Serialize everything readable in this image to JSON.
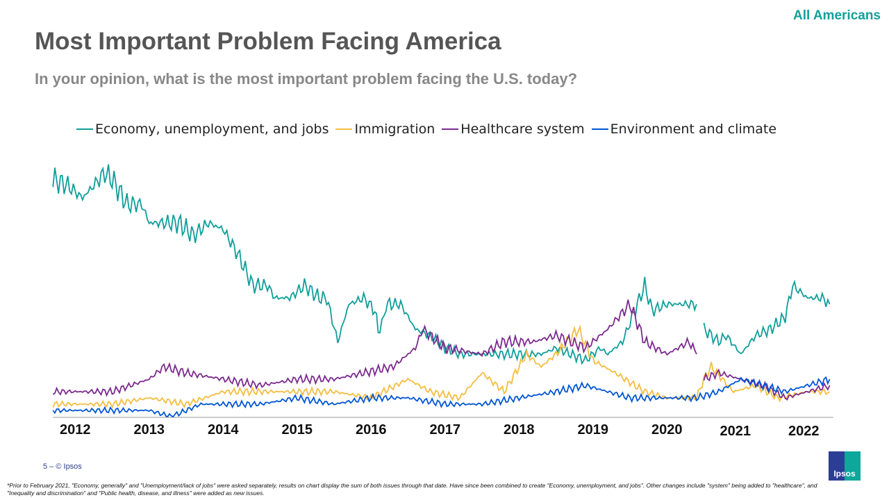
{
  "header": {
    "segment": "All Americans",
    "title": "Most Important Problem Facing America",
    "subtitle": "In your opinion, what is the most important problem facing the U.S. today?"
  },
  "footer": {
    "page": "5 –  © Ipsos",
    "note": "*Prior to February 2021, \"Economy,  generally\" and \"Unemployment/lack  of jobs\" were asked separately, results on chart display the sum of both issues through that date. Have since been combined  to create \"Economy,  unemployment,   and jobs\". Other changes include \"system\" being added to \"healthcare\", and  \"Inequality and discrimination\" and \"Public health, disease, and illness\" were added as new issues.",
    "logo": "Ipsos"
  },
  "chart_data": {
    "type": "line",
    "title": "",
    "xlabel": "",
    "ylabel": "",
    "legend": "top",
    "grid": false,
    "xlim": [
      2012,
      2022.8
    ],
    "ylim": [
      0,
      40
    ],
    "xticks": [
      "2012",
      "2013",
      "2014",
      "2015",
      "2016",
      "2017",
      "2018",
      "2019",
      "2020",
      "2021",
      "2022"
    ],
    "series": [
      {
        "name": "Economy, unemployment, and jobs",
        "color": "#0e9e9a",
        "points": [
          [
            2012.2,
            38
          ],
          [
            2012.4,
            37
          ],
          [
            2012.6,
            35
          ],
          [
            2012.9,
            39
          ],
          [
            2013.0,
            38
          ],
          [
            2013.2,
            34
          ],
          [
            2013.4,
            34
          ],
          [
            2013.5,
            31
          ],
          [
            2013.7,
            31
          ],
          [
            2013.9,
            31
          ],
          [
            2014.1,
            29
          ],
          [
            2014.3,
            31
          ],
          [
            2014.5,
            30
          ],
          [
            2014.7,
            26
          ],
          [
            2014.9,
            21
          ],
          [
            2015.1,
            21
          ],
          [
            2015.2,
            19
          ],
          [
            2015.4,
            19
          ],
          [
            2015.6,
            21
          ],
          [
            2015.8,
            19
          ],
          [
            2015.9,
            19
          ],
          [
            2016.05,
            12
          ],
          [
            2016.2,
            18
          ],
          [
            2016.4,
            19
          ],
          [
            2016.55,
            17
          ],
          [
            2016.62,
            13
          ],
          [
            2016.7,
            18
          ],
          [
            2016.9,
            18
          ],
          [
            2017.1,
            14
          ],
          [
            2017.3,
            13
          ],
          [
            2017.5,
            11
          ],
          [
            2017.7,
            10
          ],
          [
            2017.9,
            10
          ],
          [
            2018.1,
            10
          ],
          [
            2018.2,
            10
          ],
          [
            2018.4,
            10
          ],
          [
            2018.6,
            10
          ],
          [
            2018.8,
            10
          ],
          [
            2019.0,
            11
          ],
          [
            2019.2,
            10
          ],
          [
            2019.4,
            9
          ],
          [
            2019.6,
            11
          ],
          [
            2019.7,
            10
          ],
          [
            2019.9,
            12
          ],
          [
            2020.2,
            21
          ],
          [
            2020.3,
            17
          ],
          [
            2020.5,
            18
          ],
          [
            2020.7,
            18
          ],
          [
            2020.9,
            18
          ],
          null,
          [
            2021.0,
            14
          ],
          [
            2021.2,
            12
          ],
          [
            2021.3,
            13
          ],
          [
            2021.5,
            10
          ],
          [
            2021.7,
            13
          ],
          [
            2021.9,
            14
          ],
          [
            2022.1,
            16
          ],
          [
            2022.2,
            21
          ],
          [
            2022.4,
            19
          ],
          [
            2022.6,
            19
          ],
          [
            2022.7,
            18
          ]
        ]
      },
      {
        "name": "Immigration",
        "color": "#f5bd3f",
        "points": [
          [
            2012.2,
            2
          ],
          [
            2013,
            2
          ],
          [
            2013.5,
            3
          ],
          [
            2014,
            2
          ],
          [
            2014.5,
            4
          ],
          [
            2015,
            4
          ],
          [
            2015.5,
            4
          ],
          [
            2016,
            4
          ],
          [
            2016.5,
            3
          ],
          [
            2017,
            6
          ],
          [
            2017.3,
            4
          ],
          [
            2017.7,
            3
          ],
          [
            2018,
            7
          ],
          [
            2018.3,
            4
          ],
          [
            2018.6,
            10
          ],
          [
            2018.8,
            8
          ],
          [
            2019.0,
            10
          ],
          [
            2019.3,
            14
          ],
          [
            2019.5,
            9
          ],
          [
            2019.8,
            7
          ],
          [
            2020.2,
            4
          ],
          [
            2020.5,
            3
          ],
          [
            2020.9,
            3
          ],
          [
            2021.0,
            6
          ],
          [
            2021.1,
            8
          ],
          [
            2021.4,
            4
          ],
          [
            2021.7,
            5
          ],
          [
            2022.0,
            3
          ],
          [
            2022.4,
            4
          ],
          [
            2022.7,
            4
          ]
        ]
      },
      {
        "name": "Healthcare system",
        "color": "#7b2a8e",
        "points": [
          [
            2012.2,
            4
          ],
          [
            2013,
            4
          ],
          [
            2013.5,
            6
          ],
          [
            2013.7,
            8
          ],
          [
            2014,
            7
          ],
          [
            2014.5,
            6
          ],
          [
            2015,
            5
          ],
          [
            2015.5,
            6
          ],
          [
            2016,
            6
          ],
          [
            2016.4,
            7
          ],
          [
            2016.8,
            8
          ],
          [
            2017.1,
            11
          ],
          [
            2017.2,
            14
          ],
          [
            2017.5,
            11
          ],
          [
            2018,
            10
          ],
          [
            2018.3,
            12
          ],
          [
            2018.7,
            12
          ],
          [
            2019,
            13
          ],
          [
            2019.4,
            11
          ],
          [
            2019.7,
            14
          ],
          [
            2020.0,
            18
          ],
          [
            2020.2,
            12
          ],
          [
            2020.5,
            10
          ],
          [
            2020.8,
            12
          ],
          [
            2020.9,
            10
          ],
          null,
          [
            2021.0,
            6
          ],
          [
            2021.2,
            7
          ],
          [
            2021.5,
            6
          ],
          [
            2021.8,
            5
          ],
          [
            2022.1,
            3
          ],
          [
            2022.4,
            4
          ],
          [
            2022.7,
            5
          ]
        ]
      },
      {
        "name": "Environment and climate",
        "color": "#0055d4",
        "points": [
          [
            2012.2,
            1
          ],
          [
            2013,
            1
          ],
          [
            2013.5,
            1
          ],
          [
            2013.8,
            0
          ],
          [
            2014.2,
            2
          ],
          [
            2014.6,
            2
          ],
          [
            2015,
            2
          ],
          [
            2015.5,
            3
          ],
          [
            2016,
            2
          ],
          [
            2016.5,
            3
          ],
          [
            2017,
            3
          ],
          [
            2017.5,
            2
          ],
          [
            2018,
            2
          ],
          [
            2018.5,
            3
          ],
          [
            2019,
            4
          ],
          [
            2019.4,
            5
          ],
          [
            2019.7,
            4
          ],
          [
            2020,
            3
          ],
          [
            2020.5,
            3
          ],
          [
            2020.9,
            3
          ],
          [
            2021.2,
            4
          ],
          [
            2021.5,
            6
          ],
          [
            2021.8,
            5
          ],
          [
            2022.1,
            4
          ],
          [
            2022.4,
            5
          ],
          [
            2022.7,
            6
          ]
        ]
      }
    ]
  }
}
